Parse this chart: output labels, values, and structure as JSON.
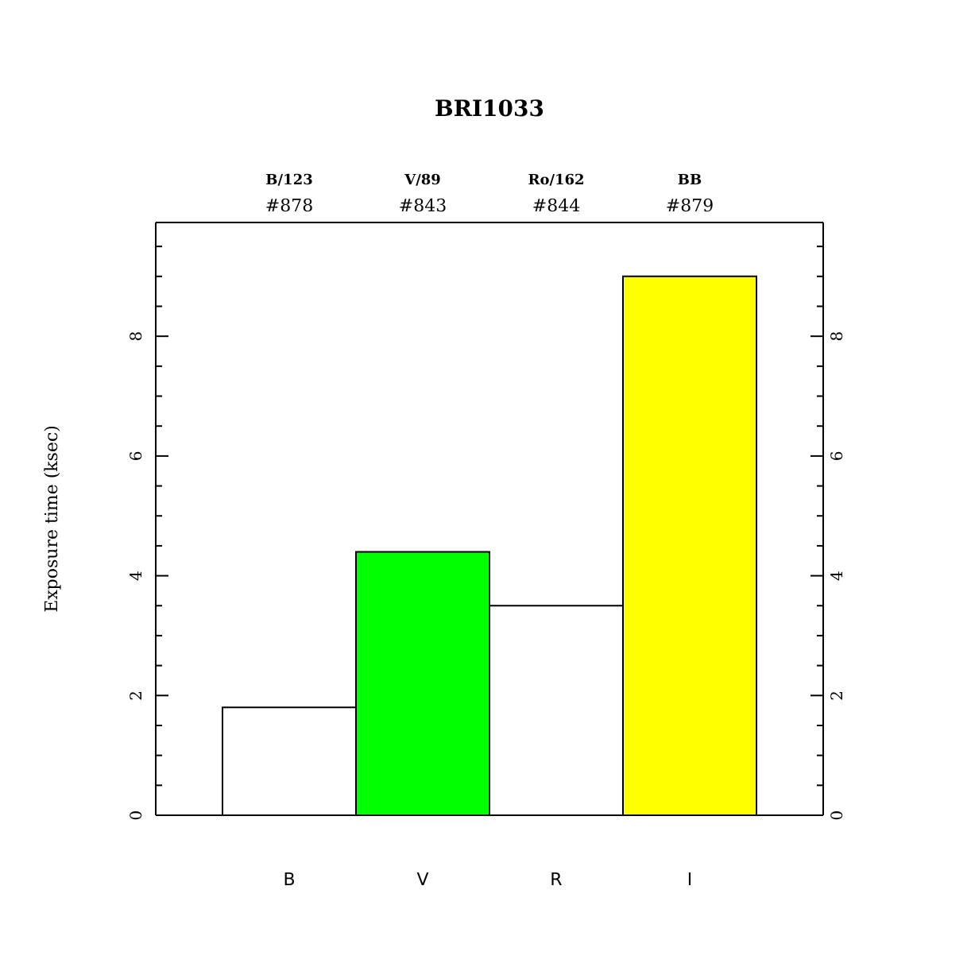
{
  "chart_data": {
    "type": "bar",
    "title": "BRI1033",
    "ylabel": "Exposure time (ksec)",
    "categories": [
      "B",
      "V",
      "R",
      "I"
    ],
    "values": [
      1.8,
      4.4,
      3.5,
      9.0
    ],
    "colors": [
      "#ffffff",
      "#00ff00",
      "#ffffff",
      "#ffff00"
    ],
    "ylim": [
      0,
      9.9
    ],
    "yticks": [
      0,
      {
        "value": 0.5,
        "label": null
      },
      {
        "value": 1,
        "label": null
      },
      {
        "value": 1.5,
        "label": null
      },
      2,
      {
        "value": 2.5,
        "label": null
      },
      {
        "value": 3,
        "label": null
      },
      {
        "value": 3.5,
        "label": null
      },
      4,
      {
        "value": 4.5,
        "label": null
      },
      {
        "value": 5,
        "label": null
      },
      {
        "value": 5.5,
        "label": null
      },
      6,
      {
        "value": 6.5,
        "label": null
      },
      {
        "value": 7,
        "label": null
      },
      {
        "value": 7.5,
        "label": null
      },
      8,
      {
        "value": 8.5,
        "label": null
      },
      {
        "value": 9,
        "label": null
      },
      {
        "value": 9.5,
        "label": null
      }
    ],
    "y2lim": [
      0,
      9.9
    ],
    "y2ticks": [
      0,
      {
        "value": 0.5,
        "label": null
      },
      {
        "value": 1,
        "label": null
      },
      {
        "value": 1.5,
        "label": null
      },
      2,
      {
        "value": 2.5,
        "label": null
      },
      {
        "value": 3,
        "label": null
      },
      {
        "value": 3.5,
        "label": null
      },
      4,
      {
        "value": 4.5,
        "label": null
      },
      {
        "value": 5,
        "label": null
      },
      {
        "value": 5.5,
        "label": null
      },
      6,
      {
        "value": 6.5,
        "label": null
      },
      {
        "value": 7,
        "label": null
      },
      {
        "value": 7.5,
        "label": null
      },
      8,
      {
        "value": 8.5,
        "label": null
      },
      {
        "value": 9,
        "label": null
      },
      {
        "value": 9.5,
        "label": null
      }
    ],
    "annotations": [
      "B/123",
      "#878",
      "V/89",
      "#843",
      "Ro/162",
      "#844",
      "BB",
      "#879"
    ],
    "grid": false,
    "legend": false
  }
}
